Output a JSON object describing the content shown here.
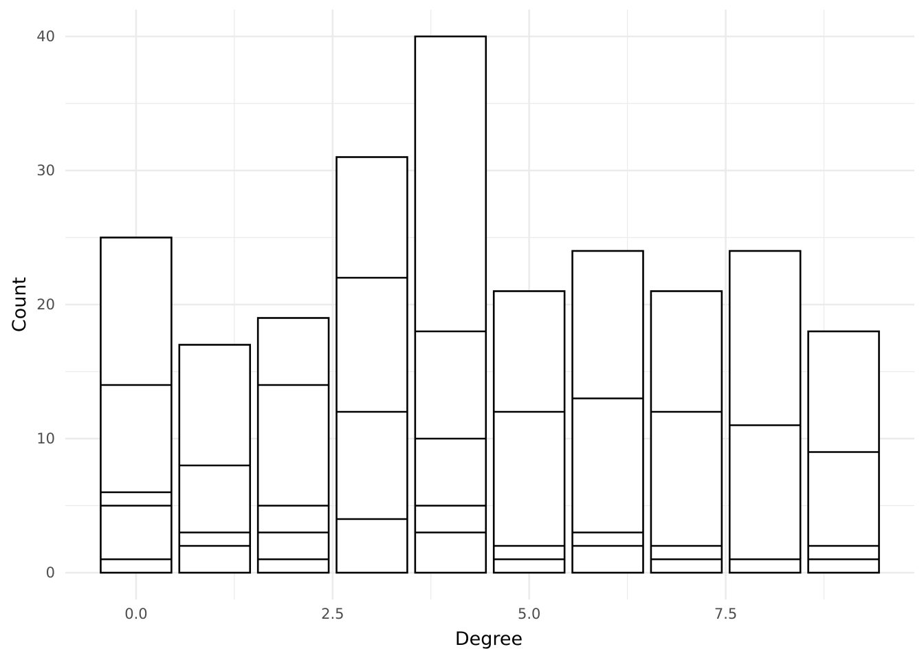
{
  "chart_data": {
    "type": "bar",
    "stacked": true,
    "title": "",
    "xlabel": "Degree",
    "ylabel": "Count",
    "xlim": [
      -0.9,
      9.9
    ],
    "ylim": [
      -2,
      42
    ],
    "x_major_ticks": [
      0,
      2.5,
      5,
      7.5
    ],
    "x_tick_labels": [
      "0.0",
      "2.5",
      "5.0",
      "7.5"
    ],
    "y_major_ticks": [
      0,
      10,
      20,
      30,
      40
    ],
    "y_tick_labels": [
      "0",
      "10",
      "20",
      "30",
      "40"
    ],
    "grid": true,
    "legend": "none",
    "bar_fill": "#ffffff",
    "bar_outline": "#000000",
    "x": [
      0,
      1,
      2,
      3,
      4,
      5,
      6,
      7,
      8,
      9
    ],
    "totals": [
      25,
      17,
      19,
      31,
      40,
      21,
      24,
      21,
      24,
      18
    ],
    "segment_boundaries": [
      [
        1,
        5,
        6,
        14
      ],
      [
        2,
        3,
        8
      ],
      [
        1,
        3,
        5,
        14
      ],
      [
        4,
        12,
        22
      ],
      [
        3,
        5,
        10,
        18
      ],
      [
        1,
        2,
        12
      ],
      [
        2,
        3,
        13
      ],
      [
        1,
        2,
        12
      ],
      [
        1,
        11
      ],
      [
        1,
        2,
        9
      ]
    ]
  }
}
